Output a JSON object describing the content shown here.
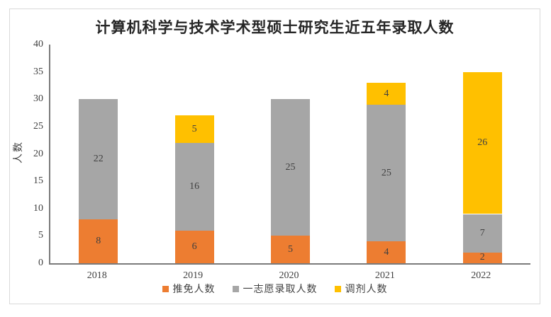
{
  "chart_data": {
    "type": "bar",
    "stacked": true,
    "title": "计算机科学与技术学术型硕士研究生近五年录取人数",
    "xlabel": "",
    "ylabel": "人数",
    "categories": [
      "2018",
      "2019",
      "2020",
      "2021",
      "2022"
    ],
    "series": [
      {
        "name": "推免人数",
        "color": "#ED7D31",
        "values": [
          8,
          6,
          5,
          4,
          2
        ]
      },
      {
        "name": "一志愿录取人数",
        "color": "#A6A6A6",
        "values": [
          22,
          16,
          25,
          25,
          7
        ]
      },
      {
        "name": "调剂人数",
        "color": "#FFC000",
        "values": [
          0,
          5,
          0,
          4,
          26
        ]
      }
    ],
    "totals": [
      30,
      27,
      30,
      33,
      35
    ],
    "ylim": [
      0,
      40
    ],
    "ytick_step": 5,
    "grid": false,
    "legend_position": "bottom",
    "label_color": "#404040",
    "axis_color": "#7B7B7B",
    "frame_border_color": "#D9D9D9"
  }
}
